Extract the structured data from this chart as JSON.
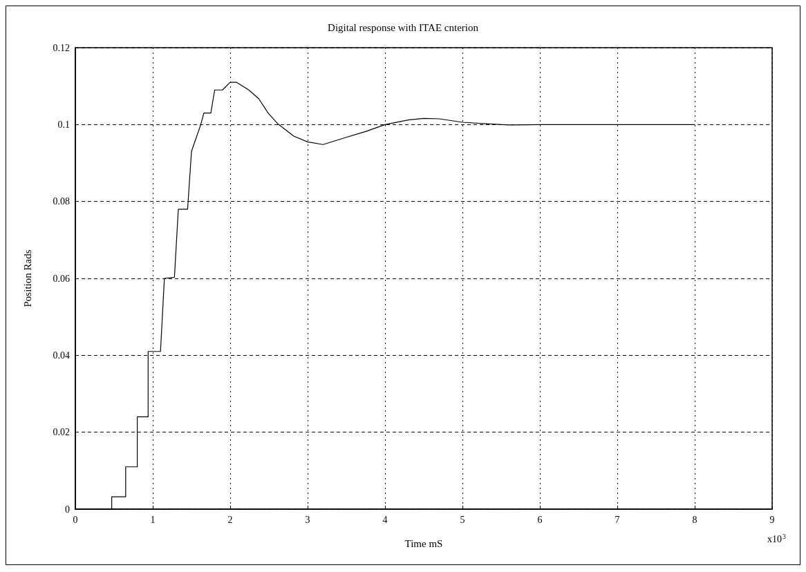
{
  "chart_data": {
    "type": "line",
    "title": "Digital response with ITAE cnterion",
    "xlabel": "Time mS",
    "ylabel": "Position Rads",
    "annotations": [
      "x10$^{3}$"
    ],
    "xlim": [
      0,
      9
    ],
    "xticks": [
      0,
      1,
      2,
      3,
      4,
      5,
      6,
      7,
      8,
      9
    ],
    "ylim": [
      0,
      0.12
    ],
    "yticks": [
      0,
      0.02,
      0.04,
      0.06,
      0.08,
      0.1,
      0.12
    ],
    "grid": true,
    "marker": "none",
    "line_style": "solid",
    "series": [
      {
        "color": "#000000",
        "x": [
          0,
          0.47,
          0.47,
          0.65,
          0.65,
          0.8,
          0.8,
          0.94,
          0.94,
          1.1,
          1.15,
          1.28,
          1.33,
          1.45,
          1.5,
          1.62,
          1.66,
          1.75,
          1.8,
          1.9,
          2.0,
          2.08,
          2.24,
          2.37,
          2.49,
          2.61,
          2.82,
          3.0,
          3.2,
          3.5,
          3.75,
          4.0,
          4.3,
          4.5,
          4.7,
          5.0,
          5.3,
          5.6,
          6.0,
          7.0,
          8.0
        ],
        "values": [
          0,
          0,
          0.0032,
          0.0032,
          0.011,
          0.011,
          0.024,
          0.024,
          0.041,
          0.041,
          0.06,
          0.0603,
          0.078,
          0.078,
          0.093,
          0.1,
          0.103,
          0.103,
          0.109,
          0.109,
          0.111,
          0.111,
          0.109,
          0.1067,
          0.103,
          0.1003,
          0.097,
          0.0955,
          0.0948,
          0.0967,
          0.0982,
          0.1,
          0.1012,
          0.1016,
          0.1015,
          0.1006,
          0.1002,
          0.0999,
          0.1,
          0.1,
          0.1
        ]
      }
    ]
  }
}
